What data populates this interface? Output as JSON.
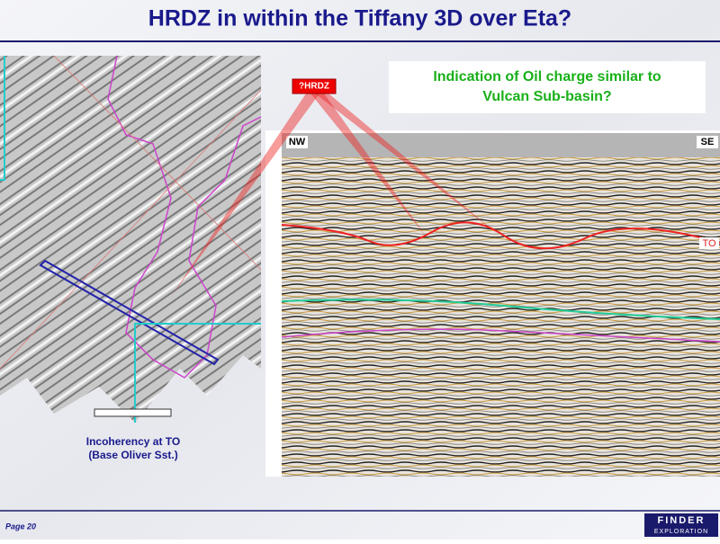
{
  "header": {
    "title": "HRDZ in within the Tiffany 3D over Eta?"
  },
  "callout": {
    "lines": [
      "Indication of Oil charge similar to",
      "Vulcan Sub-basin?"
    ]
  },
  "marker": "?HRDZ",
  "section": {
    "left_label": "NW",
    "right_label": "SE",
    "horizon_label": "TO"
  },
  "map_caption": {
    "lines": [
      "Incoherency at TO",
      "(Base Oliver Sst.)"
    ]
  },
  "footer": {
    "page": "Page 20",
    "logo": [
      "FINDER",
      "EXPLORATION"
    ]
  }
}
